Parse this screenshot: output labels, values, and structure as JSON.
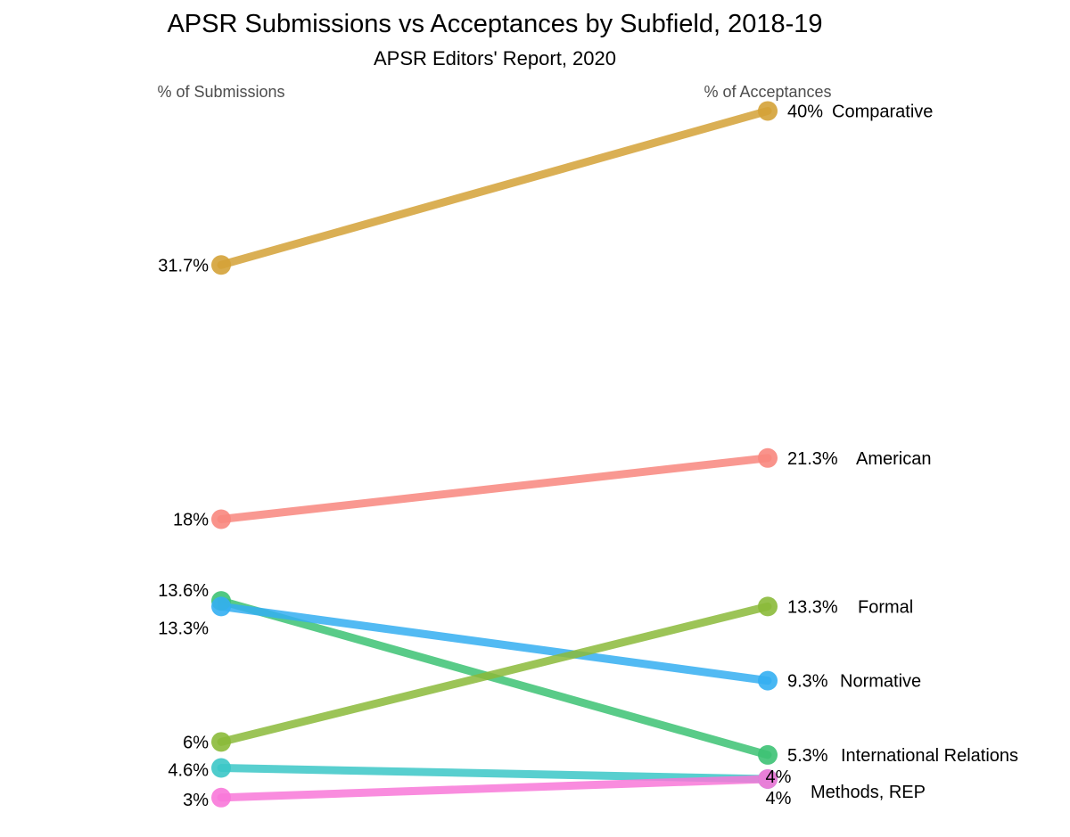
{
  "chart_data": {
    "type": "line",
    "title": "APSR Submissions vs Acceptances by Subfield, 2018-19",
    "subtitle": "APSR Editors' Report, 2020",
    "x": [
      "% of Submissions",
      "% of Acceptances"
    ],
    "series": [
      {
        "name": "Comparative",
        "values": [
          31.7,
          40
        ],
        "labels": [
          "31.7%",
          "40%"
        ],
        "color": "#D4A237"
      },
      {
        "name": "American",
        "values": [
          18,
          21.3
        ],
        "labels": [
          "18%",
          "21.3%"
        ],
        "color": "#F8877E"
      },
      {
        "name": "International Relations",
        "values": [
          13.6,
          5.3
        ],
        "labels": [
          "13.6%",
          "5.3%"
        ],
        "color": "#3DC274"
      },
      {
        "name": "Normative",
        "values": [
          13.3,
          9.3
        ],
        "labels": [
          "13.3%",
          "9.3%"
        ],
        "color": "#34AFF2"
      },
      {
        "name": "Formal",
        "values": [
          6,
          13.3
        ],
        "labels": [
          "6%",
          "13.3%"
        ],
        "color": "#8BBA3A"
      },
      {
        "name": "Methods",
        "values": [
          4.6,
          4
        ],
        "labels": [
          "4.6%",
          "4%"
        ],
        "color": "#3CC7C7"
      },
      {
        "name": "REP",
        "values": [
          3,
          4
        ],
        "labels": [
          "3%",
          "4%"
        ],
        "color": "#F878D9"
      }
    ],
    "right_labels": {
      "Comparative": "Comparative",
      "American": "American",
      "International Relations": "International Relations",
      "Normative": "Normative",
      "Formal": "Formal",
      "Methods": "Methods, REP"
    },
    "ylim": [
      3,
      40
    ],
    "grid": false,
    "legend": "none"
  }
}
